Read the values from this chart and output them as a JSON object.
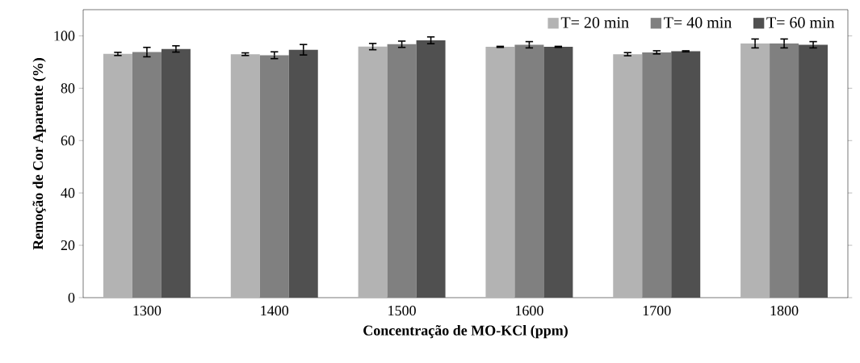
{
  "chart_data": {
    "type": "bar",
    "xlabel": "Concentração de MO-KCl (ppm)",
    "ylabel": "Remoção  de Cor Aparente (%)",
    "categories": [
      "1300",
      "1400",
      "1500",
      "1600",
      "1700",
      "1800"
    ],
    "series": [
      {
        "name": "T= 20 min",
        "color": "#b3b3b3",
        "values": [
          93.1,
          93,
          95.9,
          95.8,
          93,
          97.1
        ],
        "errors": [
          0.6,
          0.5,
          1.2,
          0.2,
          0.6,
          1.7
        ]
      },
      {
        "name": "T= 40 min",
        "color": "#808080",
        "values": [
          93.8,
          92.6,
          96.8,
          96.6,
          93.7,
          97.1
        ],
        "errors": [
          1.8,
          1.3,
          1.2,
          1.2,
          0.6,
          1.7
        ]
      },
      {
        "name": "T= 60 min",
        "color": "#505050",
        "values": [
          95,
          94.7,
          98.3,
          95.8,
          94.1,
          96.6
        ],
        "errors": [
          1.2,
          2,
          1.3,
          0.2,
          0.2,
          1.2
        ]
      }
    ],
    "ylim": [
      0,
      110
    ],
    "yticks": [
      0,
      20,
      40,
      60,
      80,
      100
    ],
    "grid": false,
    "legend": "top right"
  }
}
